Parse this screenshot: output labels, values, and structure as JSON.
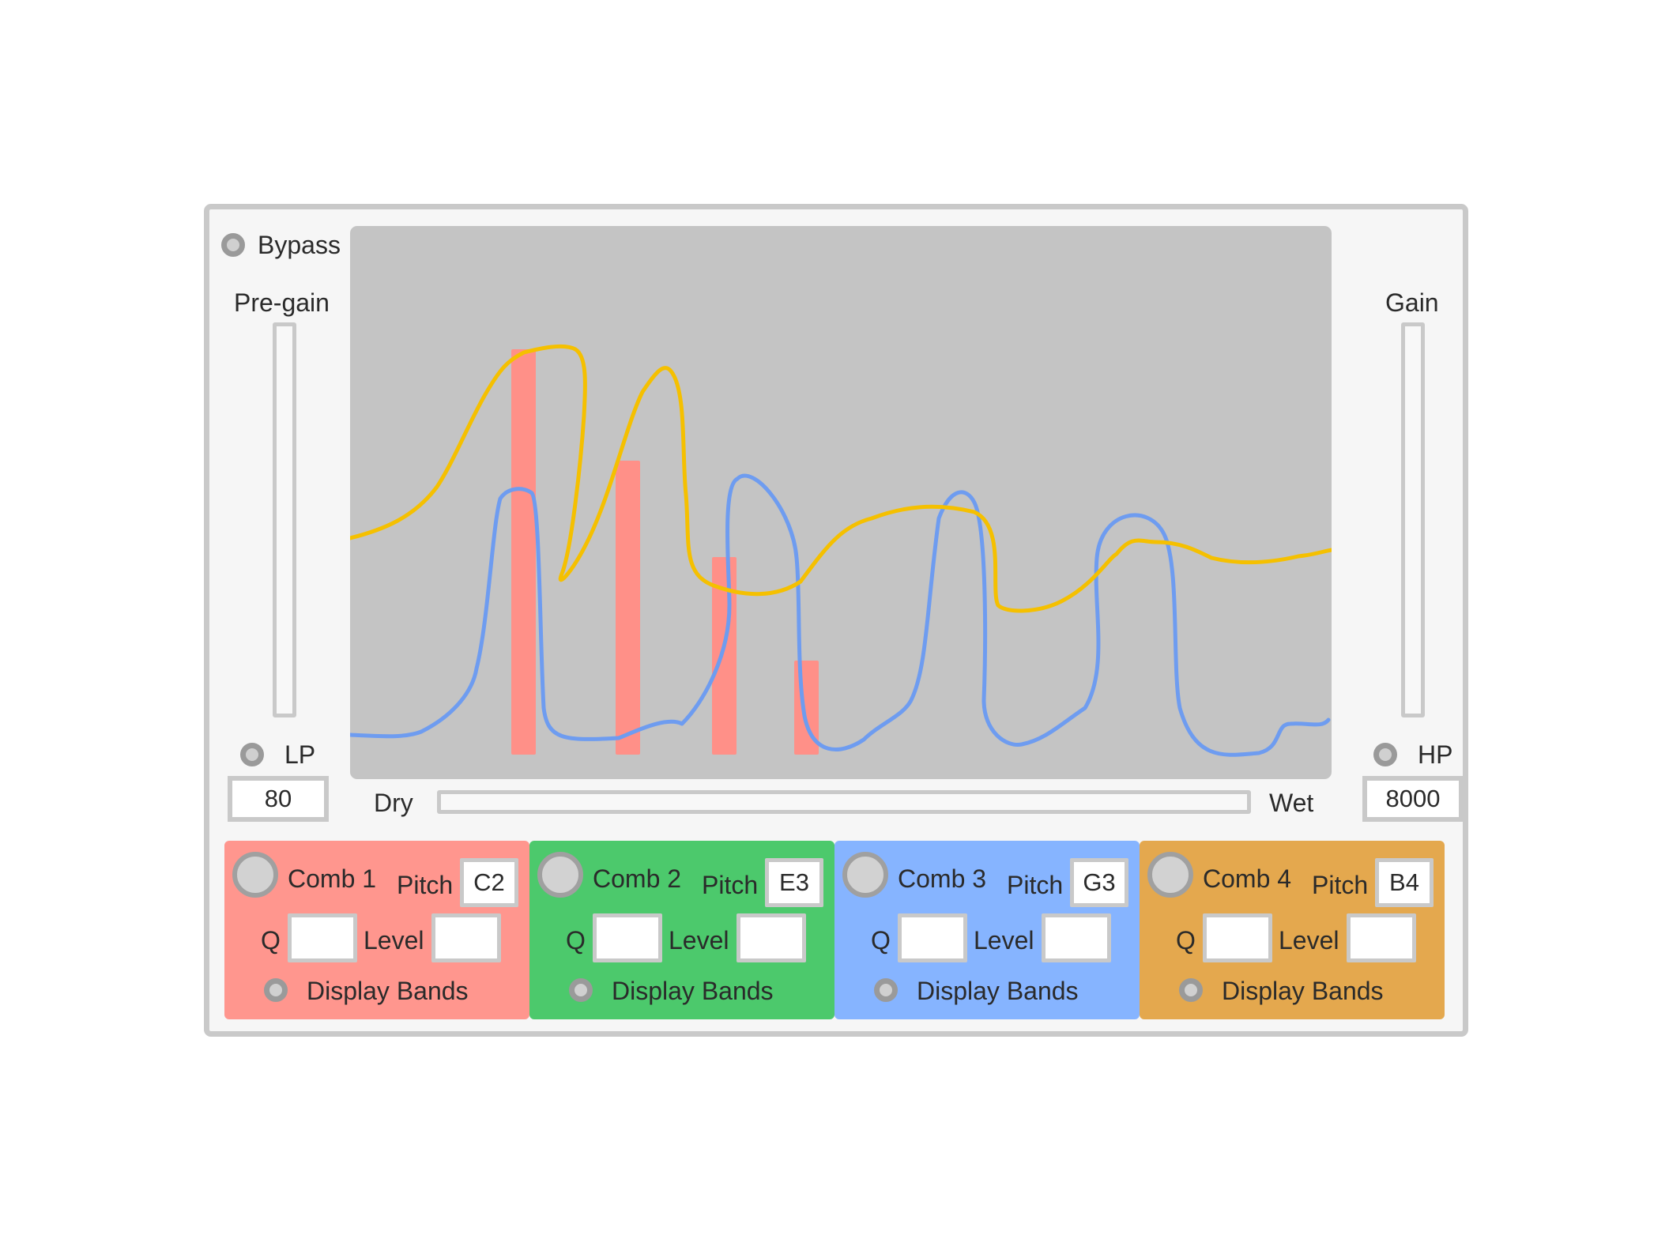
{
  "bypass_label": "Bypass",
  "pregain_label": "Pre-gain",
  "gain_label": "Gain",
  "lp_label": "LP",
  "hp_label": "HP",
  "lp_value": "80",
  "hp_value": "8000",
  "mix": {
    "dry_label": "Dry",
    "wet_label": "Wet"
  },
  "colors": {
    "plot_bg": "#c4c4c4",
    "yellow_curve": "#f5c000",
    "blue_curve": "#6e9cf0",
    "band": "#ff9088"
  },
  "combs": [
    {
      "title": "Comb 1",
      "pitch_label": "Pitch",
      "pitch": "C2",
      "q_label": "Q",
      "level_label": "Level",
      "display_label": "Display Bands",
      "color": "#ff968e"
    },
    {
      "title": "Comb 2",
      "pitch_label": "Pitch",
      "pitch": "E3",
      "q_label": "Q",
      "level_label": "Level",
      "display_label": "Display Bands",
      "color": "#4cc96c"
    },
    {
      "title": "Comb 3",
      "pitch_label": "Pitch",
      "pitch": "G3",
      "q_label": "Q",
      "level_label": "Level",
      "display_label": "Display Bands",
      "color": "#86b4ff"
    },
    {
      "title": "Comb 4",
      "pitch_label": "Pitch",
      "pitch": "B4",
      "q_label": "Q",
      "level_label": "Level",
      "display_label": "Display Bands",
      "color": "#e4a84e"
    }
  ]
}
